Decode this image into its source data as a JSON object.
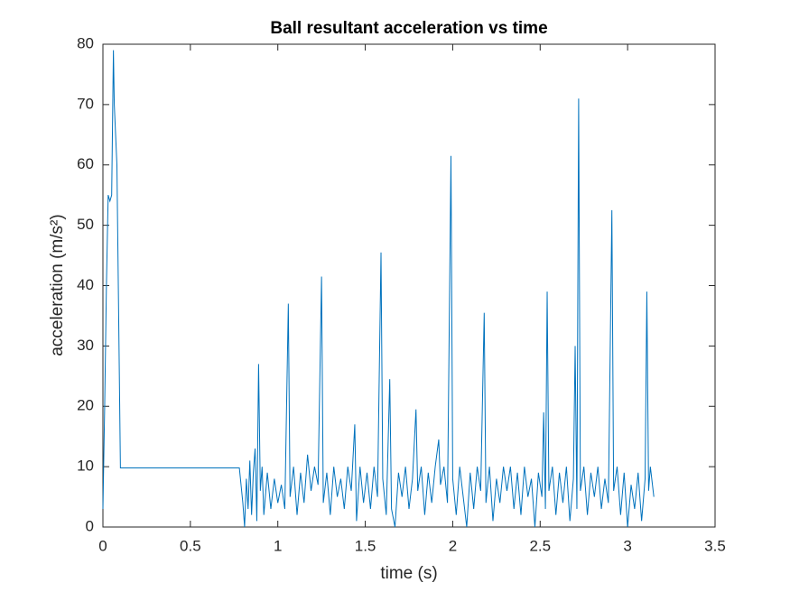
{
  "chart_data": {
    "type": "line",
    "title": "Ball resultant acceleration vs time",
    "xlabel": "time (s)",
    "ylabel": "acceleration (m/s²)",
    "xlim": [
      0,
      3.5
    ],
    "xticks": [
      0,
      0.5,
      1,
      1.5,
      2,
      2.5,
      3,
      3.5
    ],
    "ylim": [
      0,
      80
    ],
    "yticks": [
      0,
      10,
      20,
      30,
      40,
      50,
      60,
      70,
      80
    ],
    "series": [
      {
        "color": "#0072bd",
        "x": [
          0,
          0.01,
          0.02,
          0.03,
          0.04,
          0.05,
          0.06,
          0.065,
          0.08,
          0.1,
          0.78,
          0.8,
          0.81,
          0.82,
          0.83,
          0.84,
          0.85,
          0.86,
          0.87,
          0.88,
          0.89,
          0.9,
          0.91,
          0.92,
          0.94,
          0.96,
          0.98,
          1.0,
          1.02,
          1.04,
          1.06,
          1.07,
          1.09,
          1.11,
          1.13,
          1.15,
          1.17,
          1.19,
          1.21,
          1.23,
          1.25,
          1.26,
          1.28,
          1.3,
          1.32,
          1.34,
          1.36,
          1.38,
          1.4,
          1.42,
          1.44,
          1.45,
          1.47,
          1.49,
          1.51,
          1.53,
          1.55,
          1.57,
          1.59,
          1.6,
          1.62,
          1.64,
          1.65,
          1.67,
          1.69,
          1.71,
          1.73,
          1.75,
          1.77,
          1.79,
          1.8,
          1.82,
          1.84,
          1.86,
          1.88,
          1.9,
          1.92,
          1.93,
          1.95,
          1.97,
          1.99,
          2.0,
          2.02,
          2.04,
          2.06,
          2.08,
          2.1,
          2.12,
          2.14,
          2.16,
          2.18,
          2.19,
          2.21,
          2.23,
          2.25,
          2.27,
          2.29,
          2.31,
          2.33,
          2.35,
          2.37,
          2.39,
          2.41,
          2.43,
          2.45,
          2.47,
          2.49,
          2.51,
          2.52,
          2.53,
          2.54,
          2.55,
          2.57,
          2.59,
          2.61,
          2.63,
          2.65,
          2.67,
          2.69,
          2.7,
          2.71,
          2.72,
          2.73,
          2.75,
          2.77,
          2.79,
          2.81,
          2.83,
          2.85,
          2.87,
          2.89,
          2.91,
          2.92,
          2.94,
          2.96,
          2.98,
          3.0,
          3.02,
          3.04,
          3.06,
          3.08,
          3.1,
          3.11,
          3.12,
          3.13,
          3.15
        ],
        "values": [
          3,
          20,
          40,
          55,
          54,
          55,
          79,
          70,
          60,
          9.8,
          9.8,
          4,
          0,
          8,
          3,
          11,
          2,
          9,
          13,
          1,
          27,
          6,
          10,
          2,
          9,
          3,
          8,
          4,
          7,
          3,
          37,
          5,
          10,
          2,
          9,
          4,
          12,
          6,
          10,
          7,
          41.5,
          4,
          9,
          2,
          10,
          5,
          8,
          3,
          10,
          6,
          17,
          1,
          10,
          4,
          9,
          3,
          10,
          5,
          45.5,
          8,
          2,
          24.5,
          3,
          0,
          9,
          5,
          10,
          3,
          8,
          19.5,
          6,
          10,
          2,
          9,
          4,
          10,
          14.5,
          7,
          10,
          4,
          61.5,
          8,
          2,
          10,
          5,
          0,
          9,
          3,
          10,
          6,
          35.5,
          4,
          10,
          1,
          8,
          4,
          10,
          6,
          10,
          3,
          9,
          2,
          10,
          5,
          8,
          0,
          9,
          5,
          19,
          3,
          39,
          6,
          10,
          2,
          9,
          4,
          10,
          1,
          8,
          30,
          3,
          71,
          6,
          10,
          2,
          9,
          5,
          10,
          3,
          8,
          4,
          52.5,
          6,
          10,
          2,
          9,
          0,
          7,
          3,
          9,
          1,
          8,
          39,
          6,
          10,
          5
        ]
      }
    ]
  }
}
